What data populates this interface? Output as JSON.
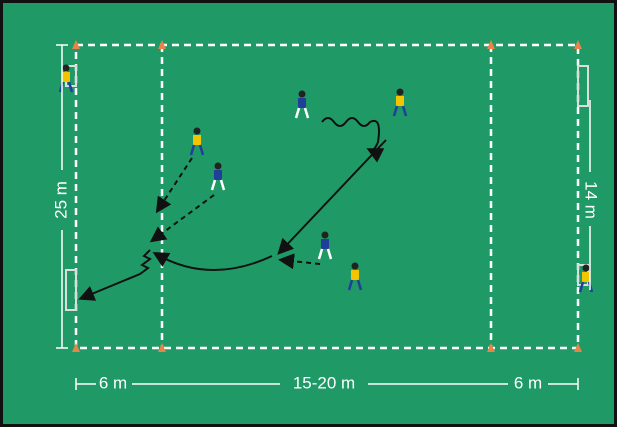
{
  "dimensions": {
    "left": "25 m",
    "right": "14 m",
    "bottom": [
      "6 m",
      "15-20 m",
      "6 m"
    ]
  }
}
